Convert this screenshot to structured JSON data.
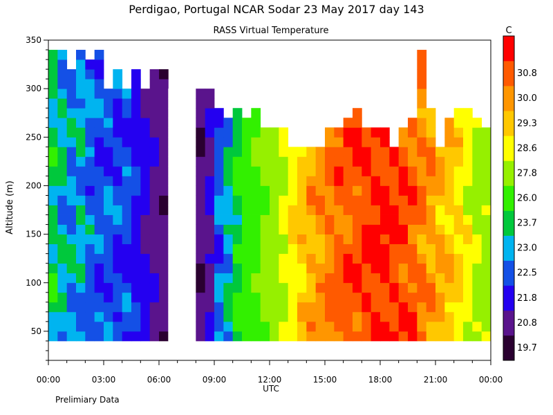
{
  "chart_data": {
    "type": "heatmap",
    "title": "Perdigao, Portugal  NCAR Sodar  23 May 2017  day 143",
    "subtitle": "RASS Virtual Temperature",
    "xlabel": "UTC",
    "ylabel": "Altitude (m)",
    "footnote": "Prelimiary Data",
    "colorbar_unit": "C",
    "x_tick_labels": [
      "00:00",
      "03:00",
      "06:00",
      "09:00",
      "12:00",
      "15:00",
      "18:00",
      "21:00",
      "00:00"
    ],
    "y_tick_labels": [
      "50",
      "100",
      "150",
      "200",
      "250",
      "300",
      "350"
    ],
    "xlim_hours": [
      0,
      24
    ],
    "ylim": [
      20,
      350
    ],
    "data_altitude_range": [
      40,
      350
    ],
    "colorbar_labels": [
      "19.7",
      "20.8",
      "21.8",
      "22.5",
      "23.0",
      "23.7",
      "26.0",
      "27.8",
      "28.6",
      "29.3",
      "30.0",
      "30.8"
    ],
    "colorbar_colors": [
      "#2a0030",
      "#5a148c",
      "#2400f0",
      "#1450e6",
      "#00b4f0",
      "#00c83c",
      "#32f000",
      "#96f000",
      "#ffff00",
      "#ffc800",
      "#ff9600",
      "#ff5a00",
      "#ff0000"
    ],
    "missing_color": "#ffffff",
    "grid": false,
    "legend": "right",
    "series": [
      {
        "hour": [
          0,
          0.5,
          1,
          1.5,
          2,
          2.5,
          3,
          3.5,
          4,
          4.5,
          5,
          5.5,
          6,
          6.5,
          7,
          7.5,
          8,
          8.5,
          9,
          9.5,
          10,
          10.5,
          11,
          11.5,
          12,
          12.5,
          13,
          13.5,
          14,
          14.5,
          15,
          15.5,
          16,
          16.5,
          17,
          17.5,
          18,
          18.5,
          19,
          19.5,
          20,
          20.5,
          21,
          21.5,
          22,
          22.5,
          23,
          23.5
        ],
        "temperature_c": [
          23.3,
          22.9,
          22.6,
          22.7,
          22.3,
          22.1,
          22.2,
          21.9,
          22.0,
          21.6,
          21.1,
          20.6,
          20.2,
          null,
          null,
          null,
          20.0,
          20.7,
          22.3,
          22.9,
          23.6,
          24.8,
          25.6,
          26.4,
          27.0,
          27.8,
          28.4,
          28.9,
          29.3,
          29.6,
          30.0,
          30.2,
          30.4,
          30.6,
          30.8,
          30.9,
          30.9,
          30.8,
          30.6,
          30.3,
          29.9,
          29.6,
          29.3,
          29.0,
          28.6,
          28.1,
          27.5,
          27.2
        ]
      }
    ],
    "top_altitude_m": [
      340,
      340,
      320,
      340,
      330,
      340,
      300,
      320,
      300,
      320,
      300,
      320,
      320,
      300,
      310,
      280,
      300,
      300,
      280,
      270,
      280,
      270,
      280,
      260,
      260,
      260,
      240,
      240,
      240,
      240,
      260,
      260,
      270,
      280,
      260,
      260,
      260,
      240,
      260,
      270,
      340,
      280,
      240,
      270,
      280,
      280,
      270,
      260
    ]
  }
}
